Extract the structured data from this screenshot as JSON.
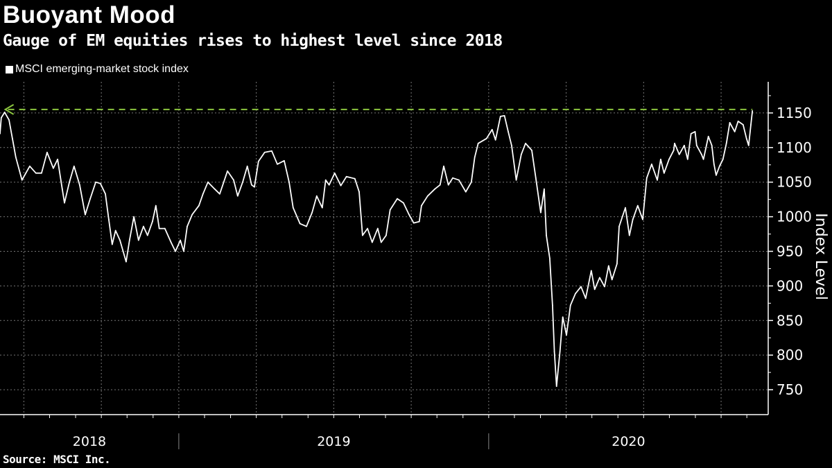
{
  "header": {
    "title": "Buoyant Mood",
    "subtitle": "Gauge of EM equities rises to highest level since 2018"
  },
  "footer": {
    "source": "Source: MSCI Inc."
  },
  "colors": {
    "background": "#000000",
    "series": "#ffffff",
    "reference_line": "#8cc63f",
    "grid": "#777777"
  },
  "chart_data": {
    "type": "line",
    "title": "Buoyant Mood",
    "subtitle": "Gauge of EM equities rises to highest level since 2018",
    "xlabel": "",
    "ylabel": "Index Level",
    "legend": {
      "placement": "top-left",
      "entries": [
        "MSCI emerging-market stock index"
      ]
    },
    "xlim": [
      2018.423,
      2020.902
    ],
    "ylim": [
      714,
      1195
    ],
    "grid": true,
    "yticks": [
      750,
      800,
      850,
      900,
      950,
      1000,
      1050,
      1100,
      1150
    ],
    "ytick_labels": [
      "750",
      "800",
      "850",
      "900",
      "950",
      "1000",
      "1050",
      "1100",
      "1150"
    ],
    "year_labels": [
      {
        "label": "2018",
        "start": 2018.423,
        "end": 2019.0
      },
      {
        "label": "2019",
        "start": 2019.0,
        "end": 2020.0
      },
      {
        "label": "2020",
        "start": 2020.0,
        "end": 2020.902
      }
    ],
    "month_ticks": [
      2018.5,
      2018.583,
      2018.667,
      2018.75,
      2018.833,
      2018.917,
      2019.0,
      2019.083,
      2019.167,
      2019.25,
      2019.333,
      2019.417,
      2019.5,
      2019.583,
      2019.667,
      2019.75,
      2019.833,
      2019.917,
      2020.0,
      2020.083,
      2020.167,
      2020.25,
      2020.333,
      2020.417,
      2020.5,
      2020.583,
      2020.667,
      2020.75,
      2020.833
    ],
    "quarter_gridlines": [
      2018.5,
      2018.75,
      2019.0,
      2019.25,
      2019.5,
      2019.75,
      2020.0,
      2020.25,
      2020.5,
      2020.75
    ],
    "reference_line": {
      "value": 1155,
      "style": "dashed",
      "from": 2018.44,
      "to": 2020.851,
      "marker": "left-arrow"
    },
    "series": [
      {
        "name": "MSCI emerging-market stock index",
        "x": [
          2018.423,
          2018.427,
          2018.438,
          2018.452,
          2018.463,
          2018.474,
          2018.494,
          2018.519,
          2018.539,
          2018.557,
          2018.575,
          2018.595,
          2018.609,
          2018.624,
          2018.631,
          2018.647,
          2018.662,
          2018.68,
          2018.698,
          2018.714,
          2018.732,
          2018.747,
          2018.763,
          2018.774,
          2018.785,
          2018.796,
          2018.81,
          2018.83,
          2018.841,
          2018.855,
          2018.87,
          2018.886,
          2018.899,
          2018.915,
          2018.926,
          2018.937,
          2018.955,
          2018.975,
          2018.989,
          2019.005,
          2019.016,
          2019.027,
          2019.043,
          2019.065,
          2019.078,
          2019.094,
          2019.116,
          2019.132,
          2019.145,
          2019.157,
          2019.177,
          2019.19,
          2019.206,
          2019.221,
          2019.235,
          2019.244,
          2019.257,
          2019.277,
          2019.3,
          2019.318,
          2019.34,
          2019.356,
          2019.369,
          2019.391,
          2019.412,
          2019.43,
          2019.445,
          2019.463,
          2019.474,
          2019.485,
          2019.503,
          2019.523,
          2019.541,
          2019.568,
          2019.582,
          2019.593,
          2019.609,
          2019.624,
          2019.642,
          2019.653,
          2019.669,
          2019.682,
          2019.705,
          2019.725,
          2019.743,
          2019.758,
          2019.776,
          2019.783,
          2019.803,
          2019.826,
          2019.843,
          2019.855,
          2019.87,
          2019.884,
          2019.904,
          2019.926,
          2019.944,
          2019.955,
          2019.966,
          2019.993,
          2020.011,
          2020.022,
          2020.038,
          2020.051,
          2020.063,
          2020.074,
          2020.089,
          2020.105,
          2020.119,
          2020.139,
          2020.152,
          2020.168,
          2020.179,
          2020.186,
          2020.197,
          2020.206,
          2020.212,
          2020.219,
          2020.23,
          2020.239,
          2020.251,
          2020.264,
          2020.28,
          2020.298,
          2020.313,
          2020.331,
          2020.342,
          2020.358,
          2020.374,
          2020.387,
          2020.398,
          2020.414,
          2020.421,
          2020.441,
          2020.454,
          2020.465,
          2020.481,
          2020.497,
          2020.51,
          2020.526,
          2020.544,
          2020.555,
          2020.566,
          2020.582,
          2020.597,
          2020.6,
          2020.615,
          2020.631,
          2020.642,
          2020.653,
          2020.666,
          2020.671,
          2020.687,
          2020.693,
          2020.709,
          2020.72,
          2020.727,
          2020.734,
          2020.745,
          2020.756,
          2020.767,
          2020.778,
          2020.794,
          2020.805,
          2020.821,
          2020.832,
          2020.839,
          2020.846,
          2020.851
        ],
        "values": [
          1120,
          1143,
          1151,
          1140,
          1113,
          1086,
          1053,
          1073,
          1063,
          1063,
          1093,
          1070,
          1083,
          1040,
          1020,
          1050,
          1073,
          1046,
          1003,
          1026,
          1050,
          1048,
          1033,
          996,
          960,
          980,
          966,
          935,
          966,
          1000,
          966,
          986,
          973,
          993,
          1016,
          983,
          983,
          963,
          950,
          966,
          950,
          986,
          1003,
          1016,
          1033,
          1050,
          1040,
          1033,
          1050,
          1066,
          1053,
          1030,
          1050,
          1073,
          1046,
          1043,
          1080,
          1093,
          1095,
          1076,
          1081,
          1050,
          1013,
          990,
          986,
          1006,
          1030,
          1013,
          1053,
          1046,
          1063,
          1045,
          1058,
          1055,
          1036,
          973,
          983,
          963,
          983,
          963,
          973,
          1010,
          1026,
          1020,
          1003,
          991,
          993,
          1016,
          1030,
          1040,
          1046,
          1073,
          1046,
          1056,
          1053,
          1036,
          1050,
          1086,
          1106,
          1113,
          1126,
          1111,
          1145,
          1146,
          1123,
          1103,
          1053,
          1090,
          1106,
          1096,
          1056,
          1006,
          1040,
          973,
          940,
          872,
          805,
          755,
          805,
          855,
          829,
          872,
          889,
          899,
          882,
          922,
          895,
          912,
          899,
          929,
          909,
          932,
          986,
          1013,
          973,
          996,
          1016,
          996,
          1056,
          1076,
          1053,
          1083,
          1063,
          1083,
          1096,
          1106,
          1090,
          1103,
          1083,
          1120,
          1123,
          1103,
          1090,
          1083,
          1116,
          1103,
          1076,
          1060,
          1073,
          1083,
          1106,
          1136,
          1123,
          1138,
          1133,
          1113,
          1103,
          1133,
          1153
        ]
      }
    ]
  }
}
